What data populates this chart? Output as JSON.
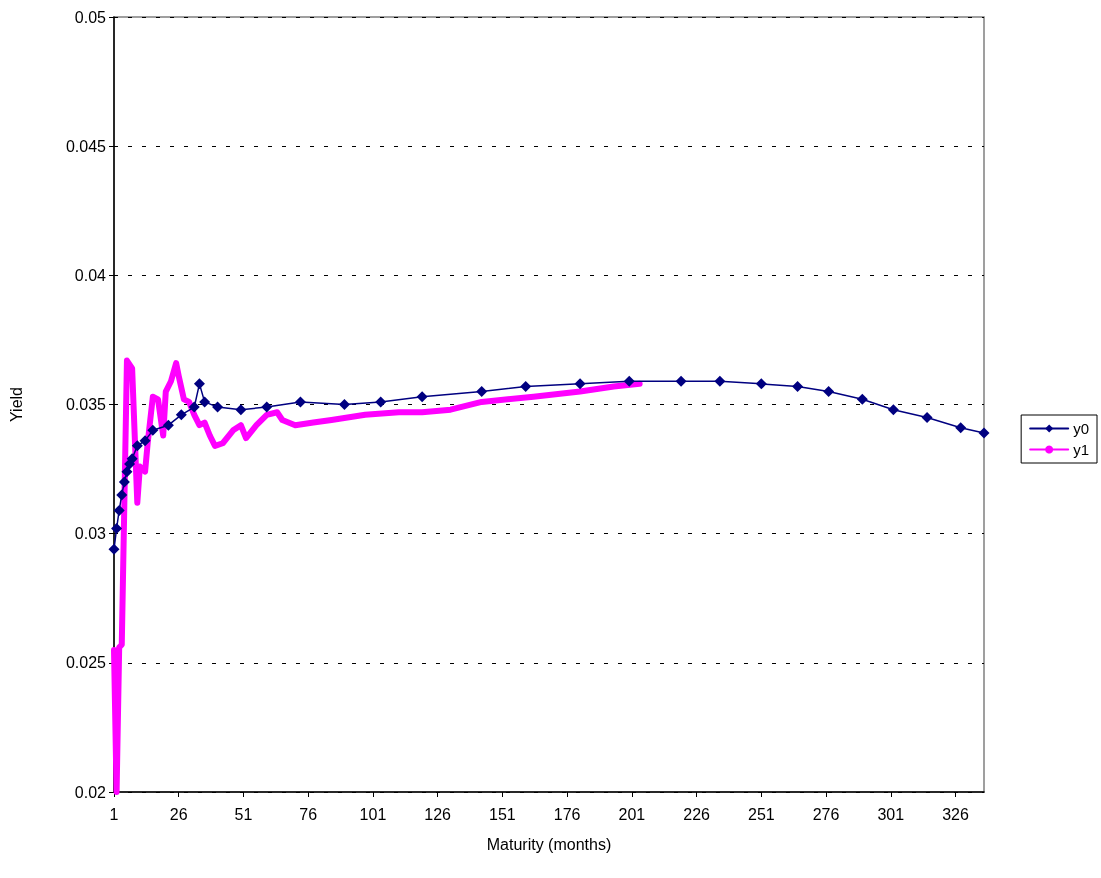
{
  "chart_data": {
    "type": "line",
    "xlabel": "Maturity (months)",
    "ylabel": "Yield",
    "xlim": [
      1,
      337
    ],
    "xticks": [
      1,
      26,
      51,
      76,
      101,
      126,
      151,
      176,
      201,
      226,
      251,
      276,
      301,
      326
    ],
    "ylim": [
      0.02,
      0.05
    ],
    "yticks": [
      0.02,
      0.025,
      0.03,
      0.035,
      0.04,
      0.045,
      0.05
    ],
    "grid": "y",
    "legend": "right",
    "series": [
      {
        "name": "y0",
        "color": "#000080",
        "marker": "diamond",
        "x": [
          1,
          2,
          3,
          4,
          5,
          6,
          7,
          8,
          10,
          13,
          16,
          22,
          27,
          32,
          34,
          36,
          41,
          50,
          60,
          73,
          90,
          104,
          120,
          143,
          160,
          181,
          200,
          220,
          235,
          251,
          265,
          277,
          290,
          302,
          315,
          328,
          337
        ],
        "values": [
          0.0294,
          0.0302,
          0.0309,
          0.0315,
          0.032,
          0.0324,
          0.0327,
          0.0329,
          0.0334,
          0.0336,
          0.034,
          0.0342,
          0.0346,
          0.0349,
          0.0358,
          0.0351,
          0.0349,
          0.0348,
          0.0349,
          0.0351,
          0.035,
          0.0351,
          0.0353,
          0.0355,
          0.0357,
          0.0358,
          0.0359,
          0.0359,
          0.0359,
          0.0358,
          0.0357,
          0.0355,
          0.0352,
          0.0348,
          0.0345,
          0.0341,
          0.0339
        ]
      },
      {
        "name": "y1",
        "color": "#ff00ff",
        "marker": "none",
        "x": [
          1,
          2,
          3,
          4,
          6,
          8,
          10,
          11,
          13,
          14,
          16,
          18,
          20,
          21,
          23,
          25,
          26,
          28,
          30,
          32,
          34,
          36,
          38,
          40,
          43,
          47,
          50,
          52,
          56,
          60,
          64,
          66,
          71,
          78,
          85,
          98,
          111,
          120,
          131,
          143,
          163,
          181,
          194,
          204
        ],
        "values": [
          0.0255,
          0.02,
          0.0256,
          0.0257,
          0.0367,
          0.0364,
          0.0312,
          0.0326,
          0.0324,
          0.0335,
          0.0353,
          0.0352,
          0.0338,
          0.0355,
          0.0359,
          0.0366,
          0.0361,
          0.0352,
          0.0351,
          0.0346,
          0.0342,
          0.0343,
          0.0338,
          0.0334,
          0.0335,
          0.034,
          0.0342,
          0.0337,
          0.0342,
          0.0346,
          0.0347,
          0.0344,
          0.0342,
          0.0343,
          0.0344,
          0.0346,
          0.0347,
          0.0347,
          0.0348,
          0.0351,
          0.0353,
          0.0355,
          0.0357,
          0.0358
        ]
      }
    ]
  }
}
